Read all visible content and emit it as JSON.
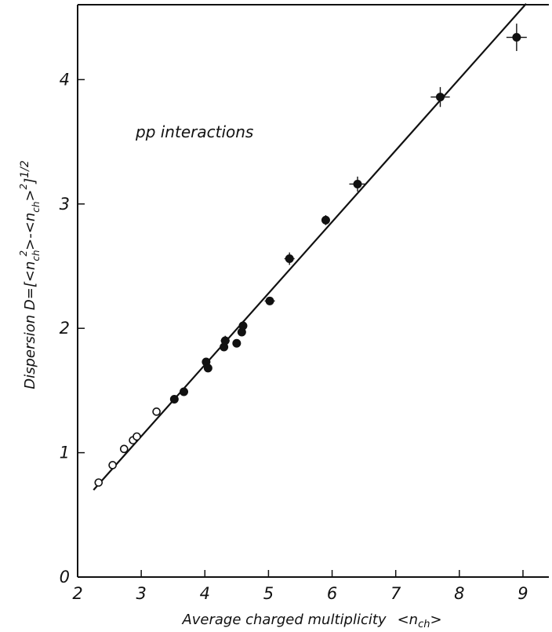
{
  "chart_data": {
    "type": "scatter",
    "annotation": "pp interactions",
    "xlabel": {
      "text": "Average charged multiplicity",
      "symbol_open": "<",
      "symbol_var": "n",
      "symbol_sub": "ch",
      "symbol_close": ">"
    },
    "ylabel": {
      "prefix": "Dispersion D=[<n",
      "sub1": "ch",
      "sup1": "2",
      "mid": ">-<n",
      "sub2": "ch",
      "suffix": ">",
      "sup2": "2",
      "end": "]",
      "power": "1/2"
    },
    "xlim": [
      2,
      9.4
    ],
    "ylim": [
      0,
      4.6
    ],
    "xticks": [
      "2",
      "3",
      "4",
      "5",
      "6",
      "7",
      "8",
      "9"
    ],
    "yticks": [
      "0",
      "1",
      "2",
      "3",
      "4"
    ],
    "grid": false,
    "series": [
      {
        "marker": "open-circle",
        "points": [
          {
            "x": 2.33,
            "y": 0.76
          },
          {
            "x": 2.55,
            "y": 0.9
          },
          {
            "x": 2.73,
            "y": 1.03
          },
          {
            "x": 2.87,
            "y": 1.1
          },
          {
            "x": 2.93,
            "y": 1.13
          },
          {
            "x": 3.24,
            "y": 1.33
          }
        ]
      },
      {
        "marker": "filled-circle",
        "points": [
          {
            "x": 3.52,
            "y": 1.43,
            "xerr": 0.05,
            "yerr": 0.03
          },
          {
            "x": 3.67,
            "y": 1.49,
            "xerr": 0.05,
            "yerr": 0.03
          },
          {
            "x": 4.02,
            "y": 1.73,
            "xerr": 0.05,
            "yerr": 0.03
          },
          {
            "x": 4.05,
            "y": 1.68,
            "xerr": 0.05,
            "yerr": 0.03
          },
          {
            "x": 4.3,
            "y": 1.85,
            "xerr": 0.05,
            "yerr": 0.03
          },
          {
            "x": 4.32,
            "y": 1.9,
            "xerr": 0.07,
            "yerr": 0.04
          },
          {
            "x": 4.5,
            "y": 1.88,
            "xerr": 0.05,
            "yerr": 0.03
          },
          {
            "x": 4.58,
            "y": 1.97,
            "xerr": 0.05,
            "yerr": 0.03
          },
          {
            "x": 4.6,
            "y": 2.02,
            "xerr": 0.05,
            "yerr": 0.04
          },
          {
            "x": 5.02,
            "y": 2.22,
            "xerr": 0.08,
            "yerr": 0.03
          },
          {
            "x": 5.33,
            "y": 2.56,
            "xerr": 0.08,
            "yerr": 0.05
          },
          {
            "x": 5.9,
            "y": 2.87,
            "xerr": 0.05,
            "yerr": 0.04
          },
          {
            "x": 6.4,
            "y": 3.16,
            "xerr": 0.13,
            "yerr": 0.06
          },
          {
            "x": 7.7,
            "y": 3.86,
            "xerr": 0.15,
            "yerr": 0.08
          },
          {
            "x": 8.9,
            "y": 4.34,
            "xerr": 0.16,
            "yerr": 0.11
          }
        ]
      }
    ],
    "fit_line": {
      "x": [
        2.25,
        9.05
      ],
      "y": [
        0.7,
        4.61
      ]
    }
  }
}
